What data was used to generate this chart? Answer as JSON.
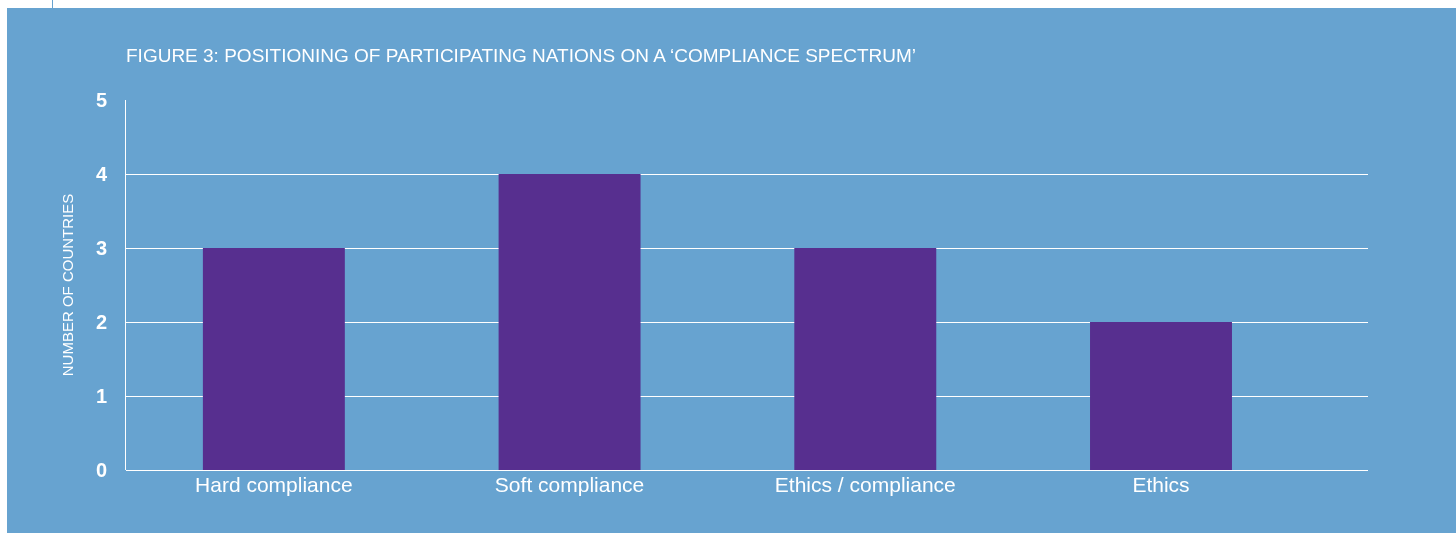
{
  "chart_data": {
    "type": "bar",
    "title": "FIGURE 3: POSITIONING OF PARTICIPATING NATIONS ON A ‘COMPLIANCE SPECTRUM’",
    "ylabel": "NUMBER OF COUNTRIES",
    "categories": [
      "Hard compliance",
      "Soft compliance",
      "Ethics / compliance",
      "Ethics"
    ],
    "values": [
      3,
      4,
      3,
      2
    ],
    "color": "#572f8f",
    "ylim": [
      0,
      5
    ],
    "yticks": [
      0,
      1,
      2,
      3,
      4,
      5
    ],
    "grid": "y"
  }
}
